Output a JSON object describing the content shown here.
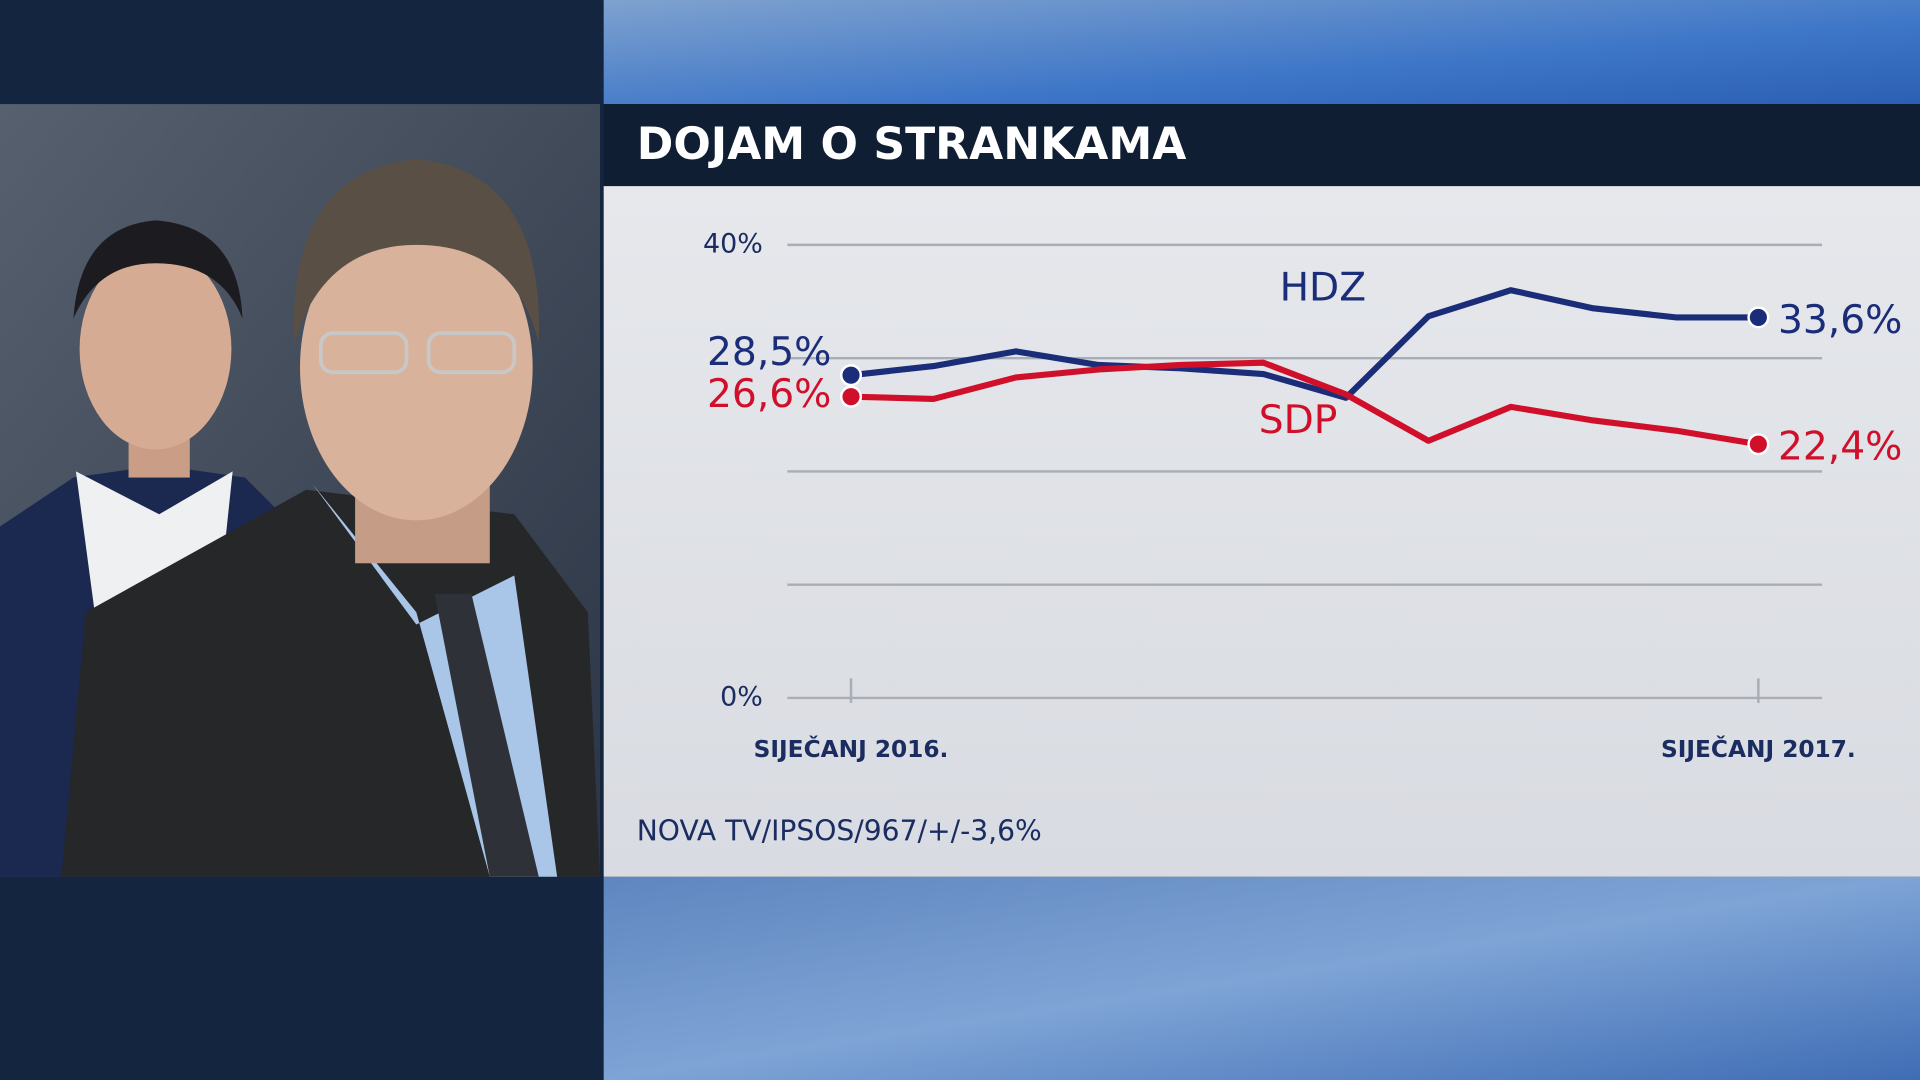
{
  "chart_data": {
    "type": "line",
    "title": "DOJAM O STRANKAMA",
    "source": "NOVA TV/IPSOS/967/+/-3,6%",
    "categories": [
      "SIJEČANJ 2016.",
      null,
      null,
      null,
      null,
      null,
      null,
      null,
      null,
      null,
      null,
      "SIJEČANJ 2017."
    ],
    "series": [
      {
        "name": "HDZ",
        "color": "#1b2d78",
        "values": [
          28.5,
          29.3,
          30.6,
          29.4,
          29.1,
          28.6,
          26.5,
          33.7,
          36.0,
          34.4,
          33.6,
          33.6
        ],
        "value_labels": [
          "28,5%",
          null,
          null,
          null,
          null,
          null,
          null,
          null,
          null,
          null,
          null,
          "33,6%"
        ]
      },
      {
        "name": "SDP",
        "color": "#d0102a",
        "values": [
          26.6,
          26.4,
          28.3,
          29.0,
          29.4,
          29.6,
          26.8,
          22.7,
          25.7,
          24.5,
          23.6,
          22.4
        ],
        "value_labels": [
          "26,6%",
          null,
          null,
          null,
          null,
          null,
          null,
          null,
          null,
          null,
          null,
          "22,4%"
        ]
      }
    ],
    "ylim": [
      0,
      40
    ],
    "yticks": [
      {
        "value": 0,
        "label": "0%"
      },
      {
        "value": 40,
        "label": "40%"
      }
    ],
    "ygrid": [
      0,
      10,
      20,
      30,
      40
    ],
    "grid": true
  }
}
